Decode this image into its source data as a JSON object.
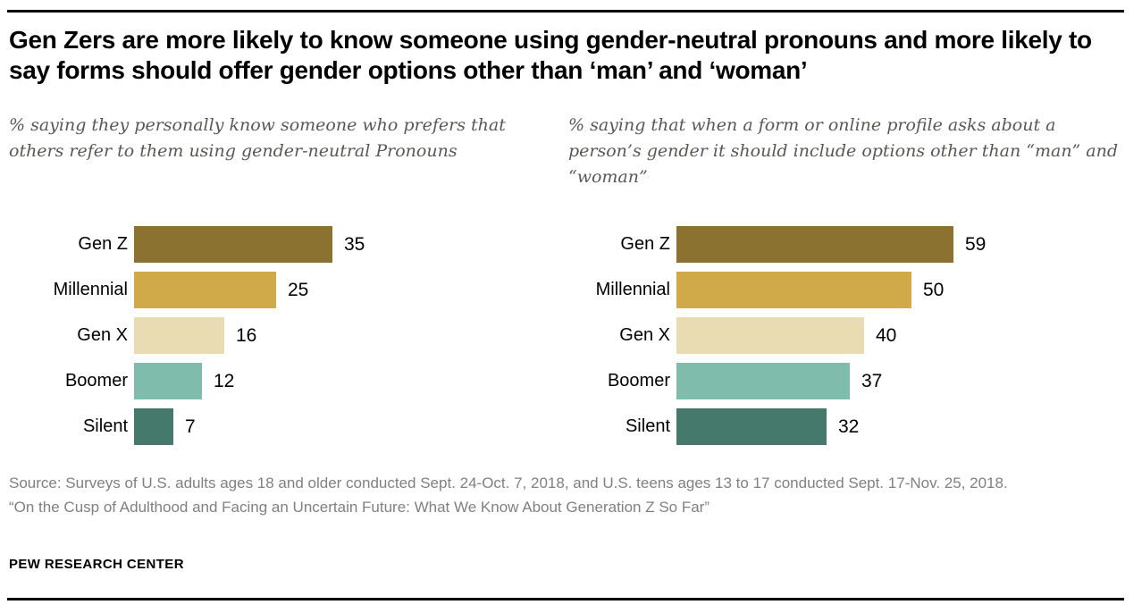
{
  "title": "Gen Zers are more likely to know someone using gender-neutral pronouns and more likely to say forms should offer gender options other than ‘man’ and ‘woman’",
  "footer": {
    "source": "Source: Surveys of U.S. adults ages 18 and older conducted Sept. 24-Oct. 7, 2018, and U.S. teens ages 13 to 17 conducted Sept. 17-Nov. 25, 2018.",
    "report": "“On the Cusp of Adulthood and Facing an Uncertain Future: What We Know About Generation Z So Far”",
    "brand": "PEW RESEARCH CENTER"
  },
  "colors": {
    "gen_z": "#8b7231",
    "millennial": "#d0a948",
    "gen_x": "#e9dcb2",
    "boomer": "#80bcab",
    "silent": "#44796b",
    "rule": "#000000",
    "subtitle_text": "#595855",
    "footer_text": "#808080"
  },
  "chart_data": [
    {
      "type": "bar",
      "orientation": "horizontal",
      "title": "% saying they personally know someone who prefers that others refer to them using gender-neutral Pronouns",
      "categories": [
        "Gen Z",
        "Millennial",
        "Gen X",
        "Boomer",
        "Silent"
      ],
      "values": [
        35,
        25,
        16,
        12,
        7
      ],
      "data_labels": [
        35,
        25,
        16,
        12,
        7
      ],
      "bar_colors": [
        "#8b7231",
        "#d0a948",
        "#e9dcb2",
        "#80bcab",
        "#44796b"
      ],
      "xlim": [
        0,
        38
      ],
      "grid": false,
      "legend": "none"
    },
    {
      "type": "bar",
      "orientation": "horizontal",
      "title": "% saying that when a form or online profile asks about a person’s gender it should include options other than “man” and “woman”",
      "categories": [
        "Gen Z",
        "Millennial",
        "Gen X",
        "Boomer",
        "Silent"
      ],
      "values": [
        59,
        50,
        40,
        37,
        32
      ],
      "data_labels": [
        59,
        50,
        40,
        37,
        32
      ],
      "bar_colors": [
        "#8b7231",
        "#d0a948",
        "#e9dcb2",
        "#80bcab",
        "#44796b"
      ],
      "xlim": [
        0,
        62
      ],
      "grid": false,
      "legend": "none"
    }
  ]
}
